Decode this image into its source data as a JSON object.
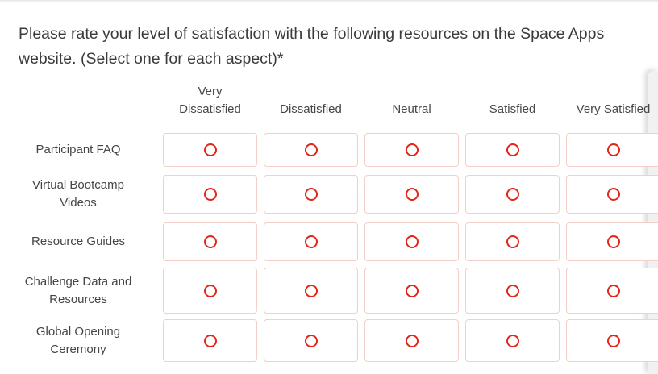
{
  "question": {
    "text": "Please rate your level of satisfaction with the following resources on the Space Apps website. (Select one for each aspect)*",
    "required_marker": "*"
  },
  "matrix": {
    "headers": [
      "Very Dissatisfied",
      "Dissatisfied",
      "Neutral",
      "Satisfied",
      "Very Satisfied"
    ],
    "rows": [
      {
        "label": "Participant FAQ"
      },
      {
        "label": "Virtual Bootcamp Videos"
      },
      {
        "label": "Resource Guides"
      },
      {
        "label": "Challenge Data and Resources"
      },
      {
        "label": "Global Opening Ceremony"
      }
    ],
    "selected": null,
    "radio_state": "unselected"
  },
  "icons": {
    "radio_unselected": "radio-unselected-icon"
  },
  "colors": {
    "radio_red": "#e3251a",
    "cell_border": "#f2cfc7",
    "text_dark": "#3b3b3b",
    "scroll_strip": "#f1f1f1"
  }
}
